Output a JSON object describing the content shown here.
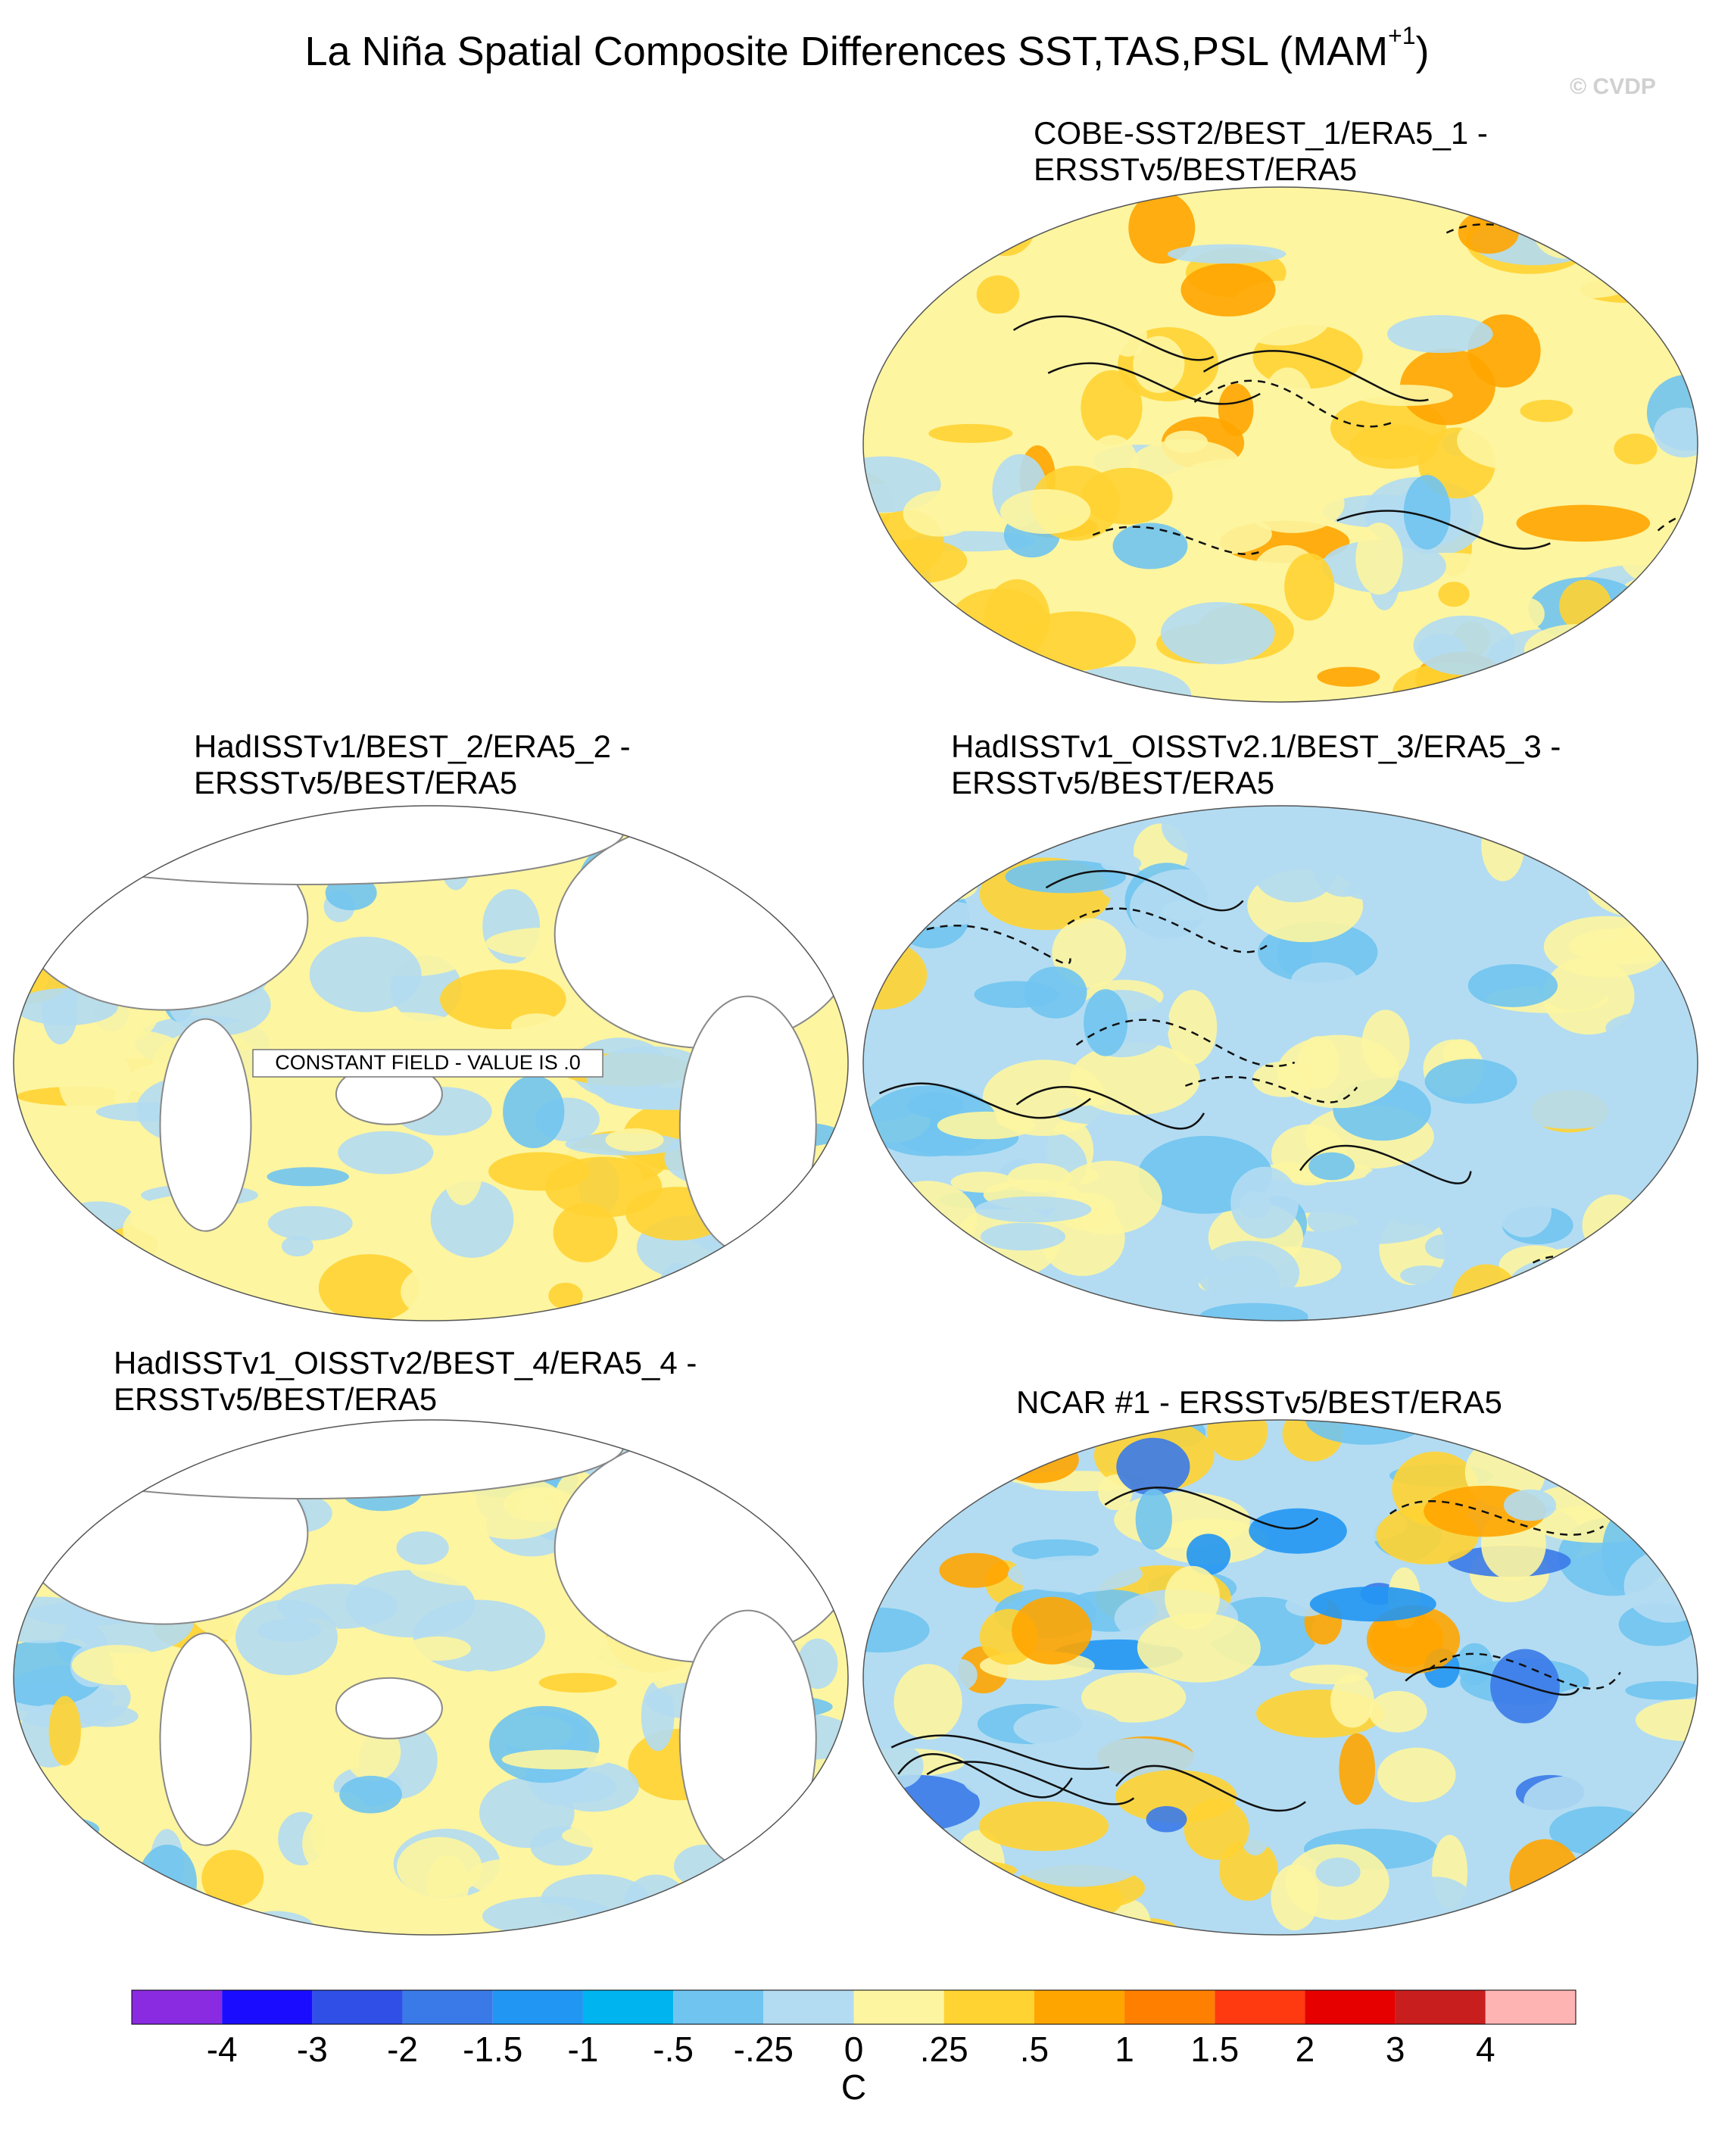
{
  "title": {
    "text": "La Niña Spatial Composite Differences SST,TAS,PSL (MAM",
    "superscript": "+1",
    "suffix": ")"
  },
  "watermark": "© CVDP",
  "panels": [
    {
      "title": [
        "COBE-SST2/BEST_1/ERA5_1 -",
        "ERSSTv5/BEST/ERA5"
      ]
    },
    {
      "title": [
        "HadISSTv1/BEST_2/ERA5_2 -",
        "ERSSTv5/BEST/ERA5"
      ],
      "note": "CONSTANT FIELD - VALUE IS .0"
    },
    {
      "title": [
        "HadISSTv1_OISSTv2.1/BEST_3/ERA5_3 -",
        "ERSSTv5/BEST/ERA5"
      ]
    },
    {
      "title": [
        "HadISSTv1_OISSTv2/BEST_4/ERA5_4 -",
        "ERSSTv5/BEST/ERA5"
      ]
    },
    {
      "title": [
        "NCAR #1 - ERSSTv5/BEST/ERA5"
      ]
    }
  ],
  "colorbar": {
    "labels": [
      "-4",
      "-3",
      "-2",
      "-1.5",
      "-1",
      "-.5",
      "-.25",
      "0",
      ".25",
      ".5",
      "1",
      "1.5",
      "2",
      "3",
      "4"
    ],
    "colors": [
      "#8a2be2",
      "#1a0dff",
      "#2f4fe6",
      "#3a7ae8",
      "#2196f3",
      "#00b4f0",
      "#70c4f0",
      "#b3dcf2",
      "#fdf5a0",
      "#ffd332",
      "#ffa500",
      "#ff7f00",
      "#ff3a10",
      "#e60000",
      "#c81e1e",
      "#ffb4b4"
    ],
    "unit": "C"
  }
}
